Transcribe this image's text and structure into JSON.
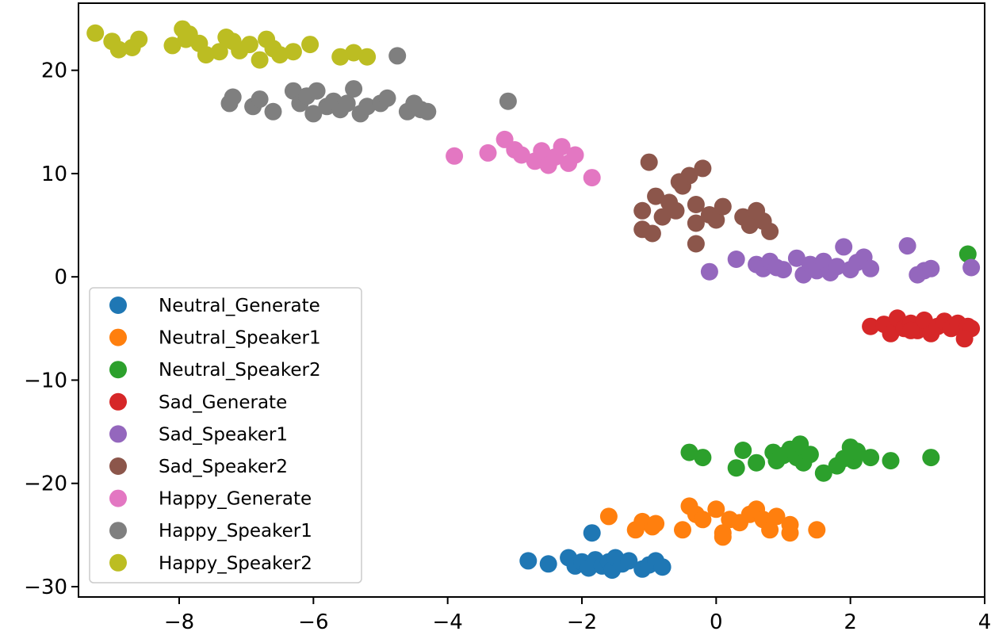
{
  "chart_data": {
    "type": "scatter",
    "title": "",
    "xlabel": "",
    "ylabel": "",
    "xlim": [
      -9.5,
      4.0
    ],
    "ylim": [
      -31,
      26.5
    ],
    "xticks": [
      -8,
      -6,
      -4,
      -2,
      0,
      2,
      4
    ],
    "yticks": [
      -30,
      -20,
      -10,
      0,
      10,
      20
    ],
    "xtick_labels": [
      "−8",
      "−6",
      "−4",
      "−2",
      "0",
      "2",
      "4"
    ],
    "ytick_labels": [
      "−30",
      "−20",
      "−10",
      "0",
      "10",
      "20"
    ],
    "grid": false,
    "legend_position": "lower-left",
    "series": [
      {
        "name": "Neutral_Generate",
        "color": "#1f77b4",
        "points": [
          [
            -2.8,
            -27.5
          ],
          [
            -2.5,
            -27.8
          ],
          [
            -2.2,
            -27.2
          ],
          [
            -2.1,
            -28.0
          ],
          [
            -2.0,
            -27.6
          ],
          [
            -1.9,
            -28.2
          ],
          [
            -1.8,
            -27.4
          ],
          [
            -1.7,
            -28.0
          ],
          [
            -1.6,
            -27.6
          ],
          [
            -1.55,
            -28.4
          ],
          [
            -1.5,
            -27.2
          ],
          [
            -1.4,
            -27.8
          ],
          [
            -1.3,
            -27.5
          ],
          [
            -1.1,
            -28.3
          ],
          [
            -1.0,
            -27.9
          ],
          [
            -0.9,
            -27.5
          ],
          [
            -0.8,
            -28.1
          ],
          [
            -1.85,
            -24.8
          ]
        ]
      },
      {
        "name": "Neutral_Speaker1",
        "color": "#ff7f0e",
        "points": [
          [
            -1.6,
            -23.2
          ],
          [
            -1.2,
            -24.5
          ],
          [
            -1.1,
            -23.7
          ],
          [
            -0.95,
            -24.2
          ],
          [
            -0.9,
            -23.9
          ],
          [
            -0.5,
            -24.5
          ],
          [
            -0.4,
            -22.2
          ],
          [
            -0.3,
            -23.0
          ],
          [
            -0.2,
            -23.5
          ],
          [
            0.0,
            -22.5
          ],
          [
            0.1,
            -24.8
          ],
          [
            0.2,
            -23.5
          ],
          [
            0.35,
            -23.8
          ],
          [
            0.5,
            -23.0
          ],
          [
            0.6,
            -22.5
          ],
          [
            0.7,
            -23.5
          ],
          [
            0.8,
            -24.5
          ],
          [
            0.9,
            -23.2
          ],
          [
            1.1,
            -24.8
          ],
          [
            1.1,
            -24.0
          ],
          [
            1.5,
            -24.5
          ],
          [
            0.1,
            -25.2
          ]
        ]
      },
      {
        "name": "Neutral_Speaker2",
        "color": "#2ca02c",
        "points": [
          [
            -0.4,
            -17.0
          ],
          [
            -0.2,
            -17.5
          ],
          [
            0.3,
            -18.5
          ],
          [
            0.4,
            -16.8
          ],
          [
            0.6,
            -18.0
          ],
          [
            0.85,
            -17.0
          ],
          [
            0.9,
            -17.8
          ],
          [
            1.0,
            -17.3
          ],
          [
            1.1,
            -16.7
          ],
          [
            1.2,
            -17.5
          ],
          [
            1.25,
            -16.2
          ],
          [
            1.3,
            -18.0
          ],
          [
            1.4,
            -17.2
          ],
          [
            1.6,
            -19.0
          ],
          [
            1.8,
            -18.3
          ],
          [
            1.9,
            -17.6
          ],
          [
            2.0,
            -16.5
          ],
          [
            2.05,
            -17.8
          ],
          [
            2.1,
            -16.9
          ],
          [
            2.3,
            -17.5
          ],
          [
            2.6,
            -17.8
          ],
          [
            3.2,
            -17.5
          ],
          [
            3.75,
            2.2
          ]
        ]
      },
      {
        "name": "Sad_Generate",
        "color": "#d62728",
        "points": [
          [
            2.3,
            -4.8
          ],
          [
            2.5,
            -4.6
          ],
          [
            2.6,
            -5.5
          ],
          [
            2.7,
            -4.0
          ],
          [
            2.8,
            -5.0
          ],
          [
            2.9,
            -4.5
          ],
          [
            3.0,
            -5.2
          ],
          [
            3.1,
            -4.2
          ],
          [
            3.2,
            -5.5
          ],
          [
            3.3,
            -4.8
          ],
          [
            3.4,
            -4.3
          ],
          [
            3.5,
            -5.0
          ],
          [
            3.6,
            -4.5
          ],
          [
            3.7,
            -5.3
          ],
          [
            3.75,
            -4.8
          ],
          [
            3.8,
            -5.0
          ],
          [
            3.7,
            -6.0
          ],
          [
            2.9,
            -5.2
          ]
        ]
      },
      {
        "name": "Sad_Speaker1",
        "color": "#9467bd",
        "points": [
          [
            -0.1,
            0.5
          ],
          [
            0.3,
            1.7
          ],
          [
            0.6,
            1.2
          ],
          [
            0.7,
            0.8
          ],
          [
            0.8,
            1.5
          ],
          [
            0.9,
            0.9
          ],
          [
            1.2,
            1.8
          ],
          [
            1.3,
            0.2
          ],
          [
            1.4,
            1.2
          ],
          [
            1.5,
            0.6
          ],
          [
            1.6,
            1.5
          ],
          [
            1.7,
            0.4
          ],
          [
            1.8,
            1.0
          ],
          [
            1.9,
            2.9
          ],
          [
            2.0,
            0.7
          ],
          [
            2.1,
            1.4
          ],
          [
            2.2,
            1.9
          ],
          [
            2.3,
            0.8
          ],
          [
            2.85,
            3.0
          ],
          [
            3.0,
            0.2
          ],
          [
            3.1,
            0.6
          ],
          [
            3.2,
            0.8
          ],
          [
            3.8,
            0.9
          ],
          [
            1.0,
            0.7
          ]
        ]
      },
      {
        "name": "Sad_Speaker2",
        "color": "#8c564b",
        "points": [
          [
            -1.0,
            11.1
          ],
          [
            -0.9,
            7.8
          ],
          [
            -1.1,
            6.4
          ],
          [
            -1.1,
            4.6
          ],
          [
            -0.95,
            4.2
          ],
          [
            -0.8,
            5.8
          ],
          [
            -0.7,
            7.2
          ],
          [
            -0.6,
            6.4
          ],
          [
            -0.5,
            8.8
          ],
          [
            -0.4,
            9.8
          ],
          [
            -0.3,
            7.0
          ],
          [
            -0.2,
            10.5
          ],
          [
            -0.3,
            5.2
          ],
          [
            -0.1,
            6.0
          ],
          [
            0.0,
            5.5
          ],
          [
            0.1,
            6.8
          ],
          [
            -0.3,
            3.2
          ],
          [
            0.4,
            5.8
          ],
          [
            0.5,
            5.0
          ],
          [
            0.6,
            6.4
          ],
          [
            0.7,
            5.4
          ],
          [
            0.8,
            4.4
          ],
          [
            -0.55,
            9.2
          ]
        ]
      },
      {
        "name": "Happy_Generate",
        "color": "#e377c2",
        "points": [
          [
            -3.9,
            11.7
          ],
          [
            -3.4,
            12.0
          ],
          [
            -3.15,
            13.3
          ],
          [
            -3.0,
            12.3
          ],
          [
            -2.9,
            11.8
          ],
          [
            -2.7,
            11.2
          ],
          [
            -2.6,
            12.2
          ],
          [
            -2.5,
            10.8
          ],
          [
            -2.4,
            11.6
          ],
          [
            -2.3,
            12.6
          ],
          [
            -2.2,
            11.0
          ],
          [
            -2.1,
            11.8
          ],
          [
            -1.85,
            9.6
          ]
        ]
      },
      {
        "name": "Happy_Speaker1",
        "color": "#7f7f7f",
        "points": [
          [
            -7.25,
            16.8
          ],
          [
            -7.2,
            17.4
          ],
          [
            -6.9,
            16.5
          ],
          [
            -6.8,
            17.2
          ],
          [
            -6.6,
            16.0
          ],
          [
            -6.3,
            18.0
          ],
          [
            -6.2,
            16.8
          ],
          [
            -6.1,
            17.5
          ],
          [
            -6.0,
            15.8
          ],
          [
            -5.95,
            18.0
          ],
          [
            -5.8,
            16.5
          ],
          [
            -5.7,
            17.0
          ],
          [
            -5.6,
            16.2
          ],
          [
            -5.5,
            16.8
          ],
          [
            -5.4,
            18.2
          ],
          [
            -5.3,
            15.8
          ],
          [
            -5.2,
            16.5
          ],
          [
            -5.0,
            16.8
          ],
          [
            -4.9,
            17.3
          ],
          [
            -4.6,
            16.0
          ],
          [
            -4.5,
            16.8
          ],
          [
            -4.4,
            16.2
          ],
          [
            -4.3,
            16.0
          ],
          [
            -3.1,
            17.0
          ],
          [
            -4.75,
            21.4
          ]
        ]
      },
      {
        "name": "Happy_Speaker2",
        "color": "#bcbd22",
        "points": [
          [
            -9.25,
            23.6
          ],
          [
            -9.0,
            22.8
          ],
          [
            -8.9,
            22.0
          ],
          [
            -8.7,
            22.2
          ],
          [
            -8.6,
            23.0
          ],
          [
            -8.1,
            22.4
          ],
          [
            -7.95,
            24.0
          ],
          [
            -7.85,
            23.5
          ],
          [
            -7.7,
            22.6
          ],
          [
            -7.6,
            21.5
          ],
          [
            -7.4,
            21.8
          ],
          [
            -7.3,
            23.2
          ],
          [
            -7.2,
            22.8
          ],
          [
            -7.1,
            21.9
          ],
          [
            -6.95,
            22.5
          ],
          [
            -6.8,
            21.0
          ],
          [
            -6.7,
            23.0
          ],
          [
            -6.6,
            22.1
          ],
          [
            -6.5,
            21.5
          ],
          [
            -6.3,
            21.8
          ],
          [
            -6.05,
            22.5
          ],
          [
            -5.6,
            21.3
          ],
          [
            -5.4,
            21.7
          ],
          [
            -5.2,
            21.3
          ],
          [
            -7.9,
            23.0
          ]
        ]
      }
    ]
  }
}
